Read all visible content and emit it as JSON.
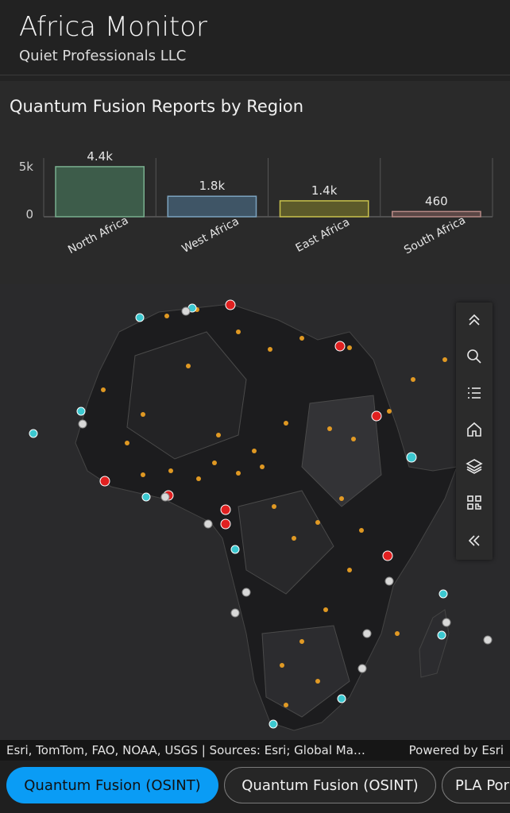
{
  "header": {
    "title": "Africa Monitor",
    "subtitle": "Quiet Professionals LLC"
  },
  "chart_panel": {
    "title": "Quantum Fusion Reports by Region"
  },
  "chart_data": {
    "type": "bar",
    "title": "Quantum Fusion Reports by Region",
    "categories": [
      "North Africa",
      "West Africa",
      "East Africa",
      "South Africa"
    ],
    "values": [
      4400,
      1800,
      1400,
      460
    ],
    "data_labels": [
      "4.4k",
      "1.8k",
      "1.4k",
      "460"
    ],
    "y_ticks": [
      "5k",
      "0"
    ],
    "ylim": [
      0,
      5000
    ],
    "colors": [
      "#3d5c4a",
      "#3f5566",
      "#5c5a2a",
      "#5a4645"
    ],
    "edge_colors": [
      "#79b08f",
      "#7ca4c0",
      "#c9c24c",
      "#b88a86"
    ],
    "grid": false
  },
  "map": {
    "toolbar": [
      {
        "name": "collapse-up-icon",
        "interactable": true
      },
      {
        "name": "search-icon",
        "interactable": true
      },
      {
        "name": "legend-list-icon",
        "interactable": true
      },
      {
        "name": "home-icon",
        "interactable": true
      },
      {
        "name": "layers-icon",
        "interactable": true
      },
      {
        "name": "qr-code-icon",
        "interactable": true
      },
      {
        "name": "collapse-left-icon",
        "interactable": true
      }
    ]
  },
  "attribution": {
    "sources": "Esri, TomTom, FAO, NOAA, USGS | Sources: Esri; Global Ma…",
    "powered_by": "Powered by Esri"
  },
  "tabs": [
    {
      "label": "Quantum Fusion (OSINT)",
      "active": true
    },
    {
      "label": "Quantum Fusion (OSINT)",
      "active": false
    },
    {
      "label": "PLA Por",
      "active": false
    }
  ],
  "colors": {
    "accent": "#0a9cf5",
    "dot_orange": "#f5a623",
    "dot_red": "#e02020",
    "dot_cyan": "#3cc8d0",
    "dot_white": "#d8d8d8"
  }
}
